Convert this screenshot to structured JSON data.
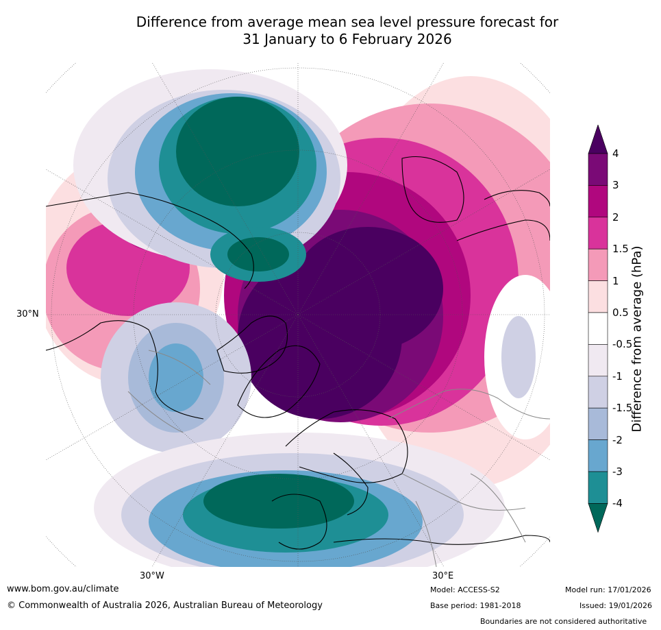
{
  "title_line1": "Difference from average mean sea level pressure forecast for",
  "title_line2": "31 January to 6 February 2026",
  "map": {
    "projection": "north polar stereographic",
    "lat_labels": [
      "30°N"
    ],
    "lon_labels": [
      "30°W",
      "30°E"
    ]
  },
  "legend": {
    "title": "Difference from average (hPa)",
    "ticks": [
      "4",
      "3",
      "2",
      "1.5",
      "1",
      "0.5",
      "-0.5",
      "-1",
      "-1.5",
      "-2",
      "-3",
      "-4"
    ],
    "colors_top_to_bottom": [
      "#4a0060",
      "#7a0a76",
      "#b0077e",
      "#d9339b",
      "#f49ab8",
      "#fcdfe1",
      "#ffffff",
      "#f0e9f1",
      "#cfd0e4",
      "#a8bad9",
      "#68a7cf",
      "#1e8f95",
      "#00685a"
    ]
  },
  "footer": {
    "website": "www.bom.gov.au/climate",
    "copyright": "© Commonwealth of Australia 2026, Australian Bureau of Meteorology",
    "model": "Model: ACCESS-S2",
    "base_period": "Base period: 1981-2018",
    "model_run": "Model run: 17/01/2026",
    "issued": "Issued: 19/01/2026",
    "disclaimer": "Boundaries are not considered authoritative"
  }
}
